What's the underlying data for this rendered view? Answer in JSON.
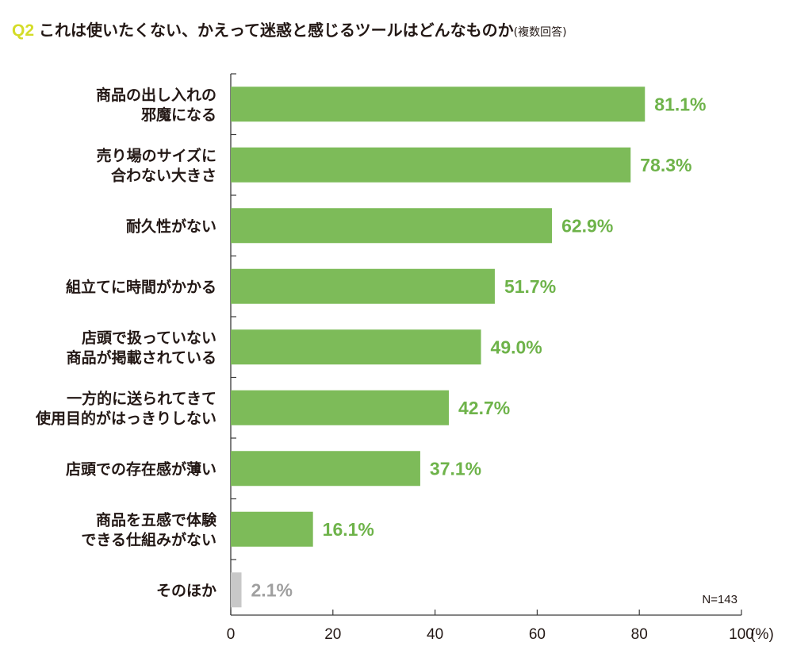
{
  "header": {
    "q_label": "Q2",
    "title": "これは使いたくない、かえって迷惑と感じるツールはどんなものか",
    "note": "(複数回答)"
  },
  "colors": {
    "bar": "#7dbb59",
    "bar_other": "#c8c8c8",
    "value_text": "#6eb34a",
    "value_text_other": "#a0a0a0",
    "axis": "#3a3a3a"
  },
  "chart_data": {
    "type": "bar",
    "orientation": "horizontal",
    "categories": [
      [
        "商品の出し入れの",
        "邪魔になる"
      ],
      [
        "売り場のサイズに",
        "合わない大きさ"
      ],
      [
        "耐久性がない"
      ],
      [
        "組立てに時間がかかる"
      ],
      [
        "店頭で扱っていない",
        "商品が掲載されている"
      ],
      [
        "一方的に送られてきて",
        "使用目的がはっきりしない"
      ],
      [
        "店頭での存在感が薄い"
      ],
      [
        "商品を五感で体験",
        "できる仕組みがない"
      ],
      [
        "そのほか"
      ]
    ],
    "values": [
      81.1,
      78.3,
      62.9,
      51.7,
      49.0,
      42.7,
      37.1,
      16.1,
      2.1
    ],
    "value_labels": [
      "81.1%",
      "78.3%",
      "62.9%",
      "51.7%",
      "49.0%",
      "42.7%",
      "37.1%",
      "16.1%",
      "2.1%"
    ],
    "xlim": [
      0,
      100
    ],
    "xticks": [
      "0",
      "20",
      "40",
      "60",
      "80",
      "100"
    ],
    "unit_label": "(%)",
    "sample_note": "N=143",
    "grid": false
  }
}
